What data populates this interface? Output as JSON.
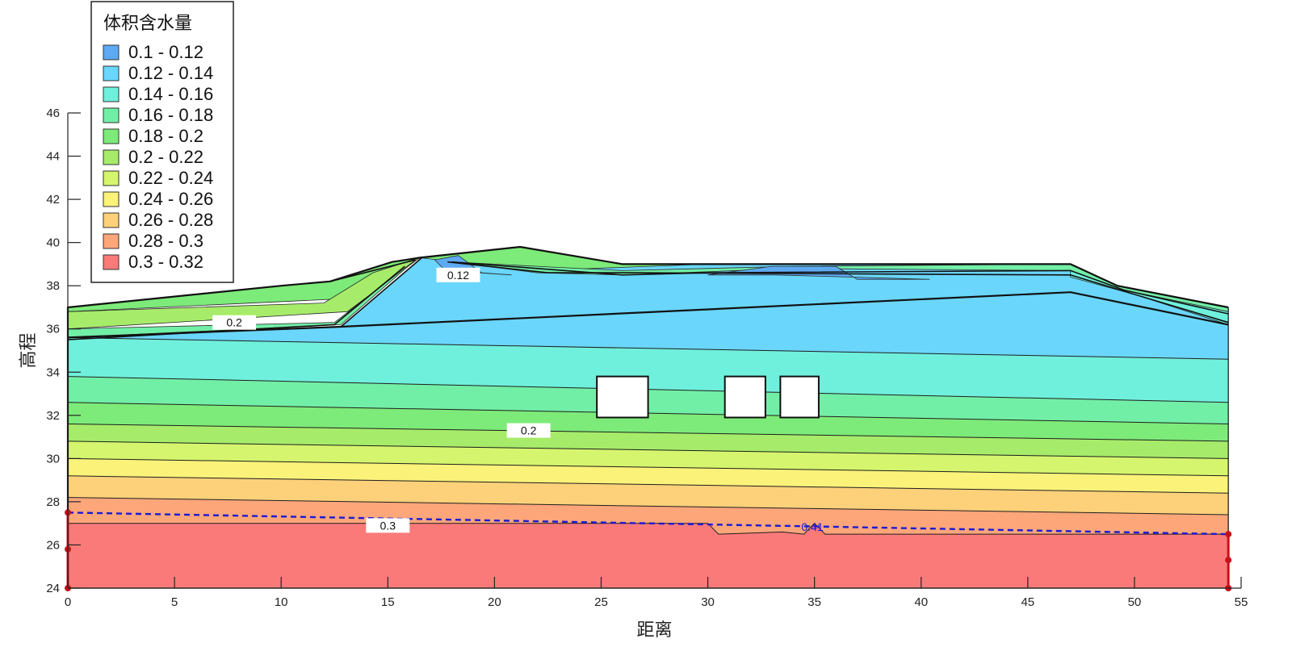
{
  "chart_data": {
    "type": "heatmap",
    "xlabel": "距离",
    "ylabel": "高程",
    "xlim": [
      0,
      55
    ],
    "ylim": [
      24,
      46
    ],
    "xticks": [
      0,
      5,
      10,
      15,
      20,
      25,
      30,
      35,
      40,
      45,
      50,
      55
    ],
    "yticks": [
      24,
      26,
      28,
      30,
      32,
      34,
      36,
      38,
      40,
      42,
      44,
      46
    ],
    "legend": {
      "title": "体积含水量",
      "position": "top-left",
      "entries": [
        {
          "label": "0.1 - 0.12",
          "color": "#5eaaf2"
        },
        {
          "label": "0.12 - 0.14",
          "color": "#6ad6fb"
        },
        {
          "label": "0.14 - 0.16",
          "color": "#6ff0dc"
        },
        {
          "label": "0.16 - 0.18",
          "color": "#72efa6"
        },
        {
          "label": "0.18 - 0.2",
          "color": "#7deb79"
        },
        {
          "label": "0.2 - 0.22",
          "color": "#a6ec6a"
        },
        {
          "label": "0.22 - 0.24",
          "color": "#d6f56e"
        },
        {
          "label": "0.24 - 0.26",
          "color": "#fbf27a"
        },
        {
          "label": "0.26 - 0.28",
          "color": "#fdd17a"
        },
        {
          "label": "0.28 - 0.3",
          "color": "#fca67a"
        },
        {
          "label": "0.3 - 0.32",
          "color": "#fa7a7a"
        }
      ]
    },
    "domain_outline": [
      [
        0,
        24
      ],
      [
        0,
        37
      ],
      [
        10,
        38
      ],
      [
        12.3,
        38.2
      ],
      [
        15.2,
        39.1
      ],
      [
        16.5,
        39.3
      ],
      [
        21.2,
        39.8
      ],
      [
        26,
        39
      ],
      [
        30,
        39
      ],
      [
        35,
        39
      ],
      [
        47,
        39
      ],
      [
        49.2,
        38
      ],
      [
        54.4,
        37
      ]
    ],
    "domain_right_bottom": [
      54.4,
      24
    ],
    "bands": [
      {
        "color": "#fa7a7a",
        "bottom": [
          [
            0,
            24
          ],
          [
            54.4,
            24
          ]
        ],
        "top": [
          [
            0,
            27
          ],
          [
            30,
            27
          ],
          [
            30.5,
            26.5
          ],
          [
            33.5,
            26.6
          ],
          [
            34.5,
            26.5
          ],
          [
            35,
            27
          ],
          [
            35.5,
            26.5
          ],
          [
            54.4,
            26.5
          ]
        ]
      },
      {
        "color": "#fca67a",
        "bottom_ref": 0,
        "top": [
          [
            0,
            28.2
          ],
          [
            54.4,
            27.4
          ]
        ]
      },
      {
        "color": "#fdd17a",
        "bottom_ref": 1,
        "top": [
          [
            0,
            29.2
          ],
          [
            54.4,
            28.4
          ]
        ]
      },
      {
        "color": "#fbf27a",
        "bottom_ref": 2,
        "top": [
          [
            0,
            30.0
          ],
          [
            54.4,
            29.2
          ]
        ]
      },
      {
        "color": "#d6f56e",
        "bottom_ref": 3,
        "top": [
          [
            0,
            30.8
          ],
          [
            54.4,
            30.0
          ]
        ]
      },
      {
        "color": "#a6ec6a",
        "bottom_ref": 4,
        "top": [
          [
            0,
            31.6
          ],
          [
            54.4,
            30.8
          ]
        ]
      },
      {
        "color": "#7deb79",
        "bottom_ref": 5,
        "top": [
          [
            0,
            32.6
          ],
          [
            54.4,
            31.6
          ]
        ]
      },
      {
        "color": "#72efa6",
        "bottom_ref": 6,
        "top": [
          [
            0,
            33.8
          ],
          [
            54.4,
            32.6
          ]
        ]
      },
      {
        "color": "#6ff0dc",
        "bottom_ref": 7,
        "top": [
          [
            0,
            35.6
          ],
          [
            54.4,
            34.6
          ]
        ]
      },
      {
        "color": "#6ad6fb",
        "bottom_ref": 8,
        "top": [
          [
            0,
            35.6
          ],
          [
            12.8,
            36.1
          ],
          [
            15.7,
            38.5
          ],
          [
            16.6,
            39.3
          ],
          [
            21.2,
            39.8
          ],
          [
            30,
            39
          ],
          [
            47,
            39
          ],
          [
            49.2,
            38
          ],
          [
            54.4,
            37
          ]
        ]
      }
    ],
    "upper_zones": [
      {
        "color": "#7deb79",
        "points": [
          [
            0,
            37
          ],
          [
            10,
            38
          ],
          [
            12.3,
            38.2
          ],
          [
            15.2,
            39.1
          ],
          [
            16.5,
            39.3
          ],
          [
            13,
            37.4
          ],
          [
            0,
            36.8
          ]
        ]
      },
      {
        "color": "#a6ec6a",
        "points": [
          [
            0,
            36.8
          ],
          [
            12,
            37.2
          ],
          [
            14.3,
            38.6
          ],
          [
            16.5,
            39.3
          ],
          [
            13.1,
            36.8
          ],
          [
            0,
            36
          ]
        ]
      },
      {
        "color": "#72efa6",
        "points": [
          [
            0,
            36
          ],
          [
            12.5,
            36.3
          ],
          [
            16.3,
            39.2
          ],
          [
            12.8,
            36.2
          ],
          [
            0,
            35.6
          ]
        ]
      },
      {
        "color": "#7deb79",
        "points": [
          [
            16.5,
            39.3
          ],
          [
            21.2,
            39.8
          ],
          [
            26,
            39
          ],
          [
            30,
            39
          ],
          [
            22,
            38.7
          ],
          [
            19,
            39
          ]
        ]
      },
      {
        "color": "#72efa6",
        "points": [
          [
            18,
            39.1
          ],
          [
            22,
            38.9
          ],
          [
            26,
            38.7
          ],
          [
            34,
            38.9
          ],
          [
            47,
            39
          ],
          [
            49.2,
            38
          ],
          [
            54.4,
            37
          ],
          [
            54.4,
            36.8
          ],
          [
            49.5,
            37.8
          ],
          [
            47,
            38.7
          ],
          [
            34,
            38.8
          ],
          [
            26,
            38.5
          ],
          [
            22,
            38.6
          ]
        ]
      },
      {
        "color": "#6ff0dc",
        "points": [
          [
            47,
            38.7
          ],
          [
            49.5,
            37.8
          ],
          [
            54.4,
            36.8
          ],
          [
            54.4,
            36.2
          ],
          [
            50,
            37.6
          ],
          [
            47,
            38.4
          ]
        ]
      },
      {
        "color": "#5eaaf2",
        "points": [
          [
            33,
            38.9
          ],
          [
            36,
            38.9
          ],
          [
            37,
            38.3
          ],
          [
            40.4,
            38.3
          ],
          [
            33.2,
            38.5
          ],
          [
            30,
            38.5
          ]
        ]
      },
      {
        "color": "#5eaaf2",
        "points": [
          [
            17.2,
            39.2
          ],
          [
            18.3,
            39.4
          ],
          [
            19.4,
            38.6
          ],
          [
            20.8,
            38.5
          ],
          [
            17.7,
            38.7
          ]
        ]
      }
    ],
    "material_lines": [
      [
        [
          0,
          35.6
        ],
        [
          12.8,
          36.1
        ],
        [
          47,
          37.7
        ],
        [
          54.4,
          36.2
        ]
      ],
      [
        [
          12.3,
          38.2
        ],
        [
          16.3,
          39.2
        ]
      ],
      [
        [
          12.8,
          36.1
        ],
        [
          16.6,
          39.3
        ]
      ],
      [
        [
          0,
          35.5
        ],
        [
          12.5,
          36.2
        ],
        [
          15.8,
          38.9
        ]
      ],
      [
        [
          18,
          39.1
        ],
        [
          22,
          38.8
        ],
        [
          26,
          38.5
        ],
        [
          30,
          38.6
        ],
        [
          47,
          38.7
        ],
        [
          49.5,
          37.8
        ],
        [
          54.4,
          36.7
        ]
      ],
      [
        [
          17.8,
          39.1
        ],
        [
          22.5,
          38.6
        ],
        [
          26.5,
          38.6
        ],
        [
          47,
          38.5
        ],
        [
          50,
          37.6
        ],
        [
          54.4,
          36.3
        ]
      ]
    ],
    "contour_lines": [
      [
        [
          0,
          28.2
        ],
        [
          54.4,
          27.4
        ]
      ],
      [
        [
          0,
          29.2
        ],
        [
          54.4,
          28.4
        ]
      ],
      [
        [
          0,
          30.0
        ],
        [
          54.4,
          29.2
        ]
      ],
      [
        [
          0,
          30.8
        ],
        [
          54.4,
          30.0
        ]
      ],
      [
        [
          0,
          31.6
        ],
        [
          54.4,
          30.8
        ]
      ],
      [
        [
          0,
          32.6
        ],
        [
          54.4,
          31.6
        ]
      ],
      [
        [
          0,
          33.8
        ],
        [
          54.4,
          32.6
        ]
      ],
      [
        [
          0,
          35.6
        ],
        [
          54.4,
          34.6
        ]
      ],
      [
        [
          0,
          27
        ],
        [
          30,
          27
        ],
        [
          30.5,
          26.5
        ],
        [
          33.5,
          26.6
        ],
        [
          34.5,
          26.5
        ],
        [
          35,
          27
        ],
        [
          35.5,
          26.5
        ],
        [
          54.4,
          26.5
        ]
      ]
    ],
    "voids": [
      {
        "x": [
          24.8,
          27.2
        ],
        "y": [
          31.9,
          33.8
        ]
      },
      {
        "x": [
          30.8,
          32.7
        ],
        "y": [
          31.9,
          33.8
        ]
      },
      {
        "x": [
          33.4,
          35.2
        ],
        "y": [
          31.9,
          33.8
        ]
      }
    ],
    "contour_labels": [
      {
        "text": "0.12",
        "x": 18.3,
        "y": 38.5
      },
      {
        "text": "0.2",
        "x": 7.8,
        "y": 36.3
      },
      {
        "text": "0.2",
        "x": 21.6,
        "y": 31.3
      },
      {
        "text": "0.3",
        "x": 15,
        "y": 26.9
      }
    ],
    "water_table": {
      "points": [
        [
          0,
          27.5
        ],
        [
          54.4,
          26.5
        ]
      ],
      "color": "#1a1ad4",
      "style": "dashed"
    },
    "water_table_label": {
      "text": "0.41",
      "x": 34.9,
      "y": 26.8
    },
    "boundary_nodes": [
      [
        0,
        24
      ],
      [
        0,
        25.8
      ],
      [
        0,
        27.5
      ],
      [
        54.4,
        24
      ],
      [
        54.4,
        25.3
      ],
      [
        54.4,
        26.5
      ]
    ],
    "boundary_color": "#c8101a"
  }
}
